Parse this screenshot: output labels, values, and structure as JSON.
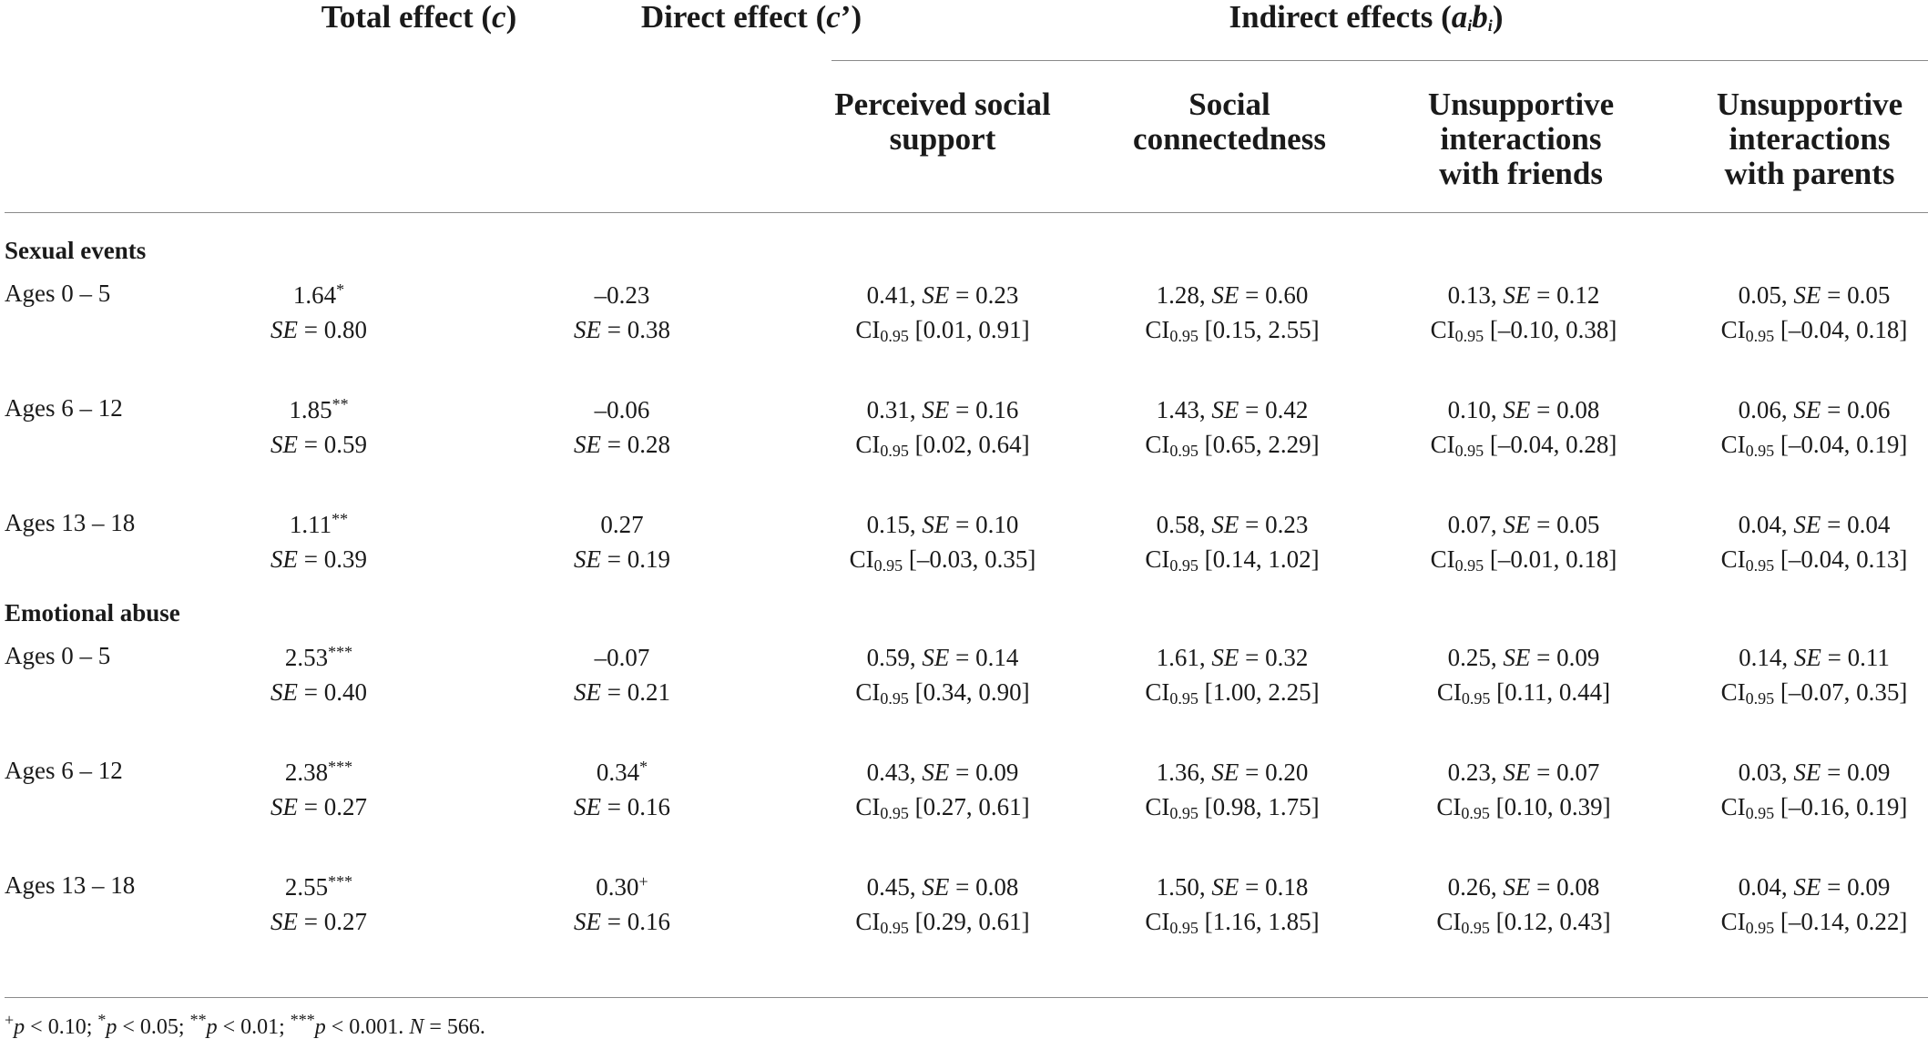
{
  "headers": {
    "total": "Total effect (c)",
    "direct": "Direct effect (c’)",
    "indirect": "Indirect effects (aᵢbᵢ)",
    "sub": [
      [
        "Perceived social",
        "support"
      ],
      [
        "Social",
        "connectedness"
      ],
      [
        "Unsupportive",
        "interactions",
        "with friends"
      ],
      [
        "Unsupportive",
        "interactions",
        "with parents"
      ]
    ]
  },
  "sections": [
    {
      "title": "Sexual events",
      "rows": [
        {
          "label": "Ages 0 – 5",
          "total": "1.64*",
          "total_se": "0.80",
          "direct": "–0.23",
          "direct_se": "0.38",
          "ind": [
            [
              "0.41",
              "0.23",
              "[0.01, 0.91]"
            ],
            [
              "1.28",
              "0.60",
              "[0.15, 2.55]"
            ],
            [
              "0.13",
              "0.12",
              "[–0.10, 0.38]"
            ],
            [
              "0.05",
              "0.05",
              "[–0.04, 0.18]"
            ]
          ]
        },
        {
          "label": "Ages 6 – 12",
          "total": "1.85**",
          "total_se": "0.59",
          "direct": "–0.06",
          "direct_se": "0.28",
          "ind": [
            [
              "0.31",
              "0.16",
              "[0.02, 0.64]"
            ],
            [
              "1.43",
              "0.42",
              "[0.65, 2.29]"
            ],
            [
              "0.10",
              "0.08",
              "[–0.04, 0.28]"
            ],
            [
              "0.06",
              "0.06",
              "[–0.04, 0.19]"
            ]
          ]
        },
        {
          "label": "Ages 13 – 18",
          "total": "1.11**",
          "total_se": "0.39",
          "direct": "0.27",
          "direct_se": "0.19",
          "ind": [
            [
              "0.15",
              "0.10",
              "[–0.03, 0.35]"
            ],
            [
              "0.58",
              "0.23",
              "[0.14, 1.02]"
            ],
            [
              "0.07",
              "0.05",
              "[–0.01, 0.18]"
            ],
            [
              "0.04",
              "0.04",
              "[–0.04, 0.13]"
            ]
          ]
        }
      ]
    },
    {
      "title": "Emotional abuse",
      "rows": [
        {
          "label": "Ages 0 – 5",
          "total": "2.53***",
          "total_se": "0.40",
          "direct": "–0.07",
          "direct_se": "0.21",
          "ind": [
            [
              "0.59",
              "0.14",
              "[0.34, 0.90]"
            ],
            [
              "1.61",
              "0.32",
              "[1.00, 2.25]"
            ],
            [
              "0.25",
              "0.09",
              "[0.11, 0.44]"
            ],
            [
              "0.14",
              "0.11",
              "[–0.07, 0.35]"
            ]
          ]
        },
        {
          "label": "Ages 6 – 12",
          "total": "2.38***",
          "total_se": "0.27",
          "direct": "0.34*",
          "direct_se": "0.16",
          "ind": [
            [
              "0.43",
              "0.09",
              "[0.27, 0.61]"
            ],
            [
              "1.36",
              "0.20",
              "[0.98, 1.75]"
            ],
            [
              "0.23",
              "0.07",
              "[0.10, 0.39]"
            ],
            [
              "0.03",
              "0.09",
              "[–0.16, 0.19]"
            ]
          ]
        },
        {
          "label": "Ages 13 – 18",
          "total": "2.55***",
          "total_se": "0.27",
          "direct": "0.30+",
          "direct_se": "0.16",
          "ind": [
            [
              "0.45",
              "0.08",
              "[0.29, 0.61]"
            ],
            [
              "1.50",
              "0.18",
              "[1.16, 1.85]"
            ],
            [
              "0.26",
              "0.08",
              "[0.12, 0.43]"
            ],
            [
              "0.04",
              "0.09",
              "[–0.14, 0.22]"
            ]
          ]
        }
      ]
    }
  ],
  "labels": {
    "se": "SE",
    "ci": "CI",
    "ci_sub": "0.95",
    "eq": " = "
  },
  "footnote": "+p < 0.10; *p < 0.05; **p < 0.01; ***p < 0.001. N = 566."
}
